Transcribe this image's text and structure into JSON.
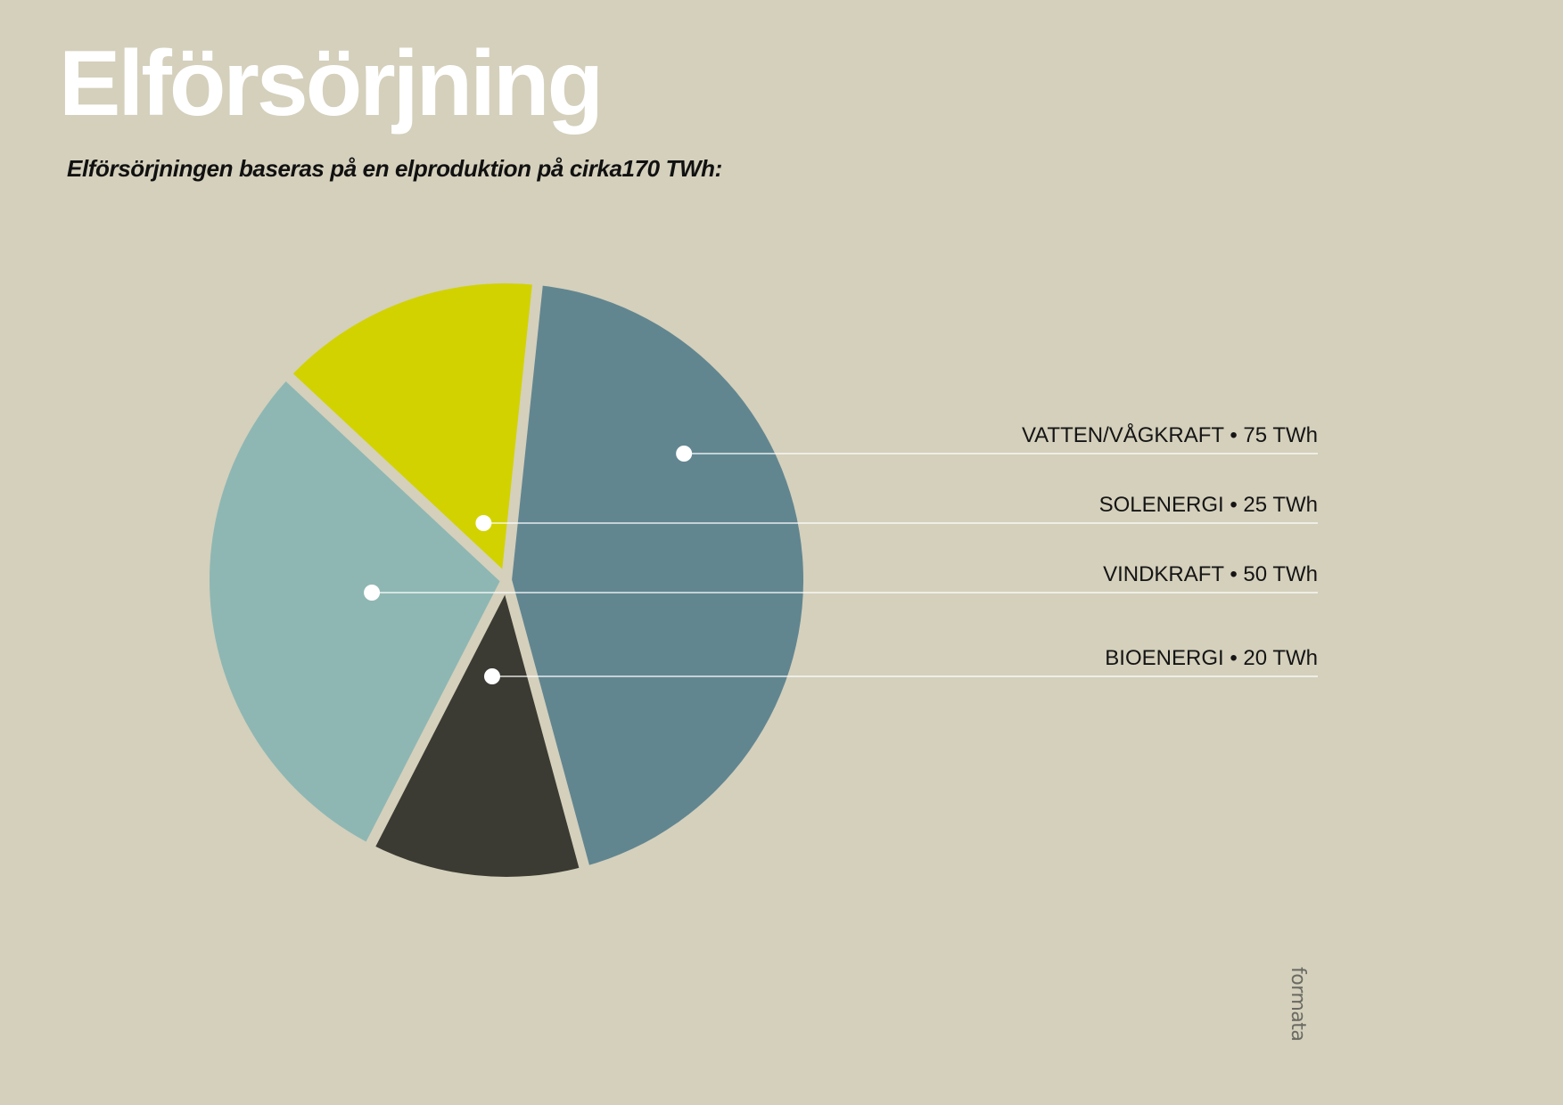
{
  "title": "Elförsörjning",
  "subtitle": "Elförsörjningen baseras på en elproduktion på cirka170 TWh:",
  "brand": "formata",
  "chart_data": {
    "type": "pie",
    "unit": "TWh",
    "slices": [
      {
        "label": "VATTEN/VÅGKRAFT",
        "value": 75,
        "value_label": "75 TWh",
        "color": "#628690"
      },
      {
        "label": "BIOENERGI",
        "value": 20,
        "value_label": "20 TWh",
        "color": "#3b3b33"
      },
      {
        "label": "VINDKRAFT",
        "value": 50,
        "value_label": "50 TWh",
        "color": "#8eb7b3"
      },
      {
        "label": "SOLENERGI",
        "value": 25,
        "value_label": "25 TWh",
        "color": "#d2d200"
      }
    ],
    "legend_order": [
      "VATTEN/VÅGKRAFT",
      "SOLENERGI",
      "VINDKRAFT",
      "BIOENERGI"
    ],
    "legend_separator": "•",
    "legend_placement": "right",
    "background_color": "#d4d0bc",
    "leader_color": "#ffffff"
  }
}
